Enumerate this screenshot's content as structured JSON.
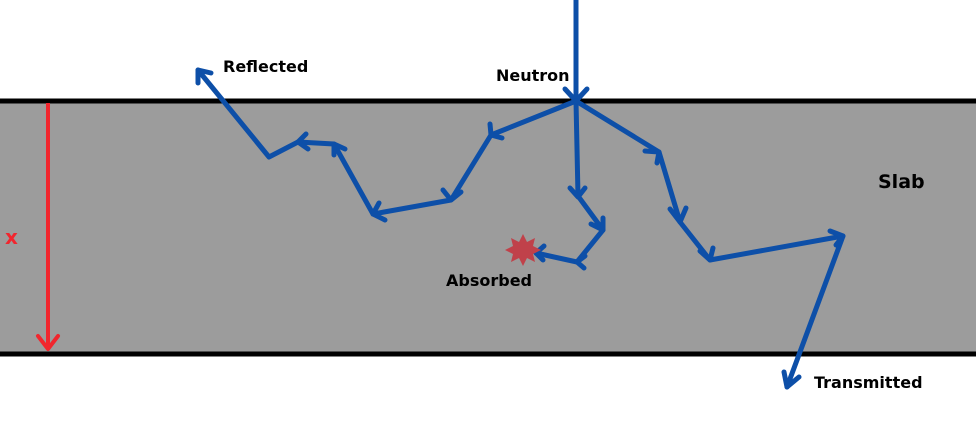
{
  "colors": {
    "slab": "#9c9c9c",
    "boundary": "#000000",
    "path": "#0d4fa8",
    "thickness_arrow": "#f1262e",
    "absorbed_marker": "#c0414a"
  },
  "labels": {
    "neutron": "Neutron",
    "reflected": "Reflected",
    "absorbed": "Absorbed",
    "transmitted": "Transmitted",
    "slab": "Slab",
    "thickness": "x"
  },
  "icons": {
    "absorbed_marker": "starburst-icon"
  }
}
